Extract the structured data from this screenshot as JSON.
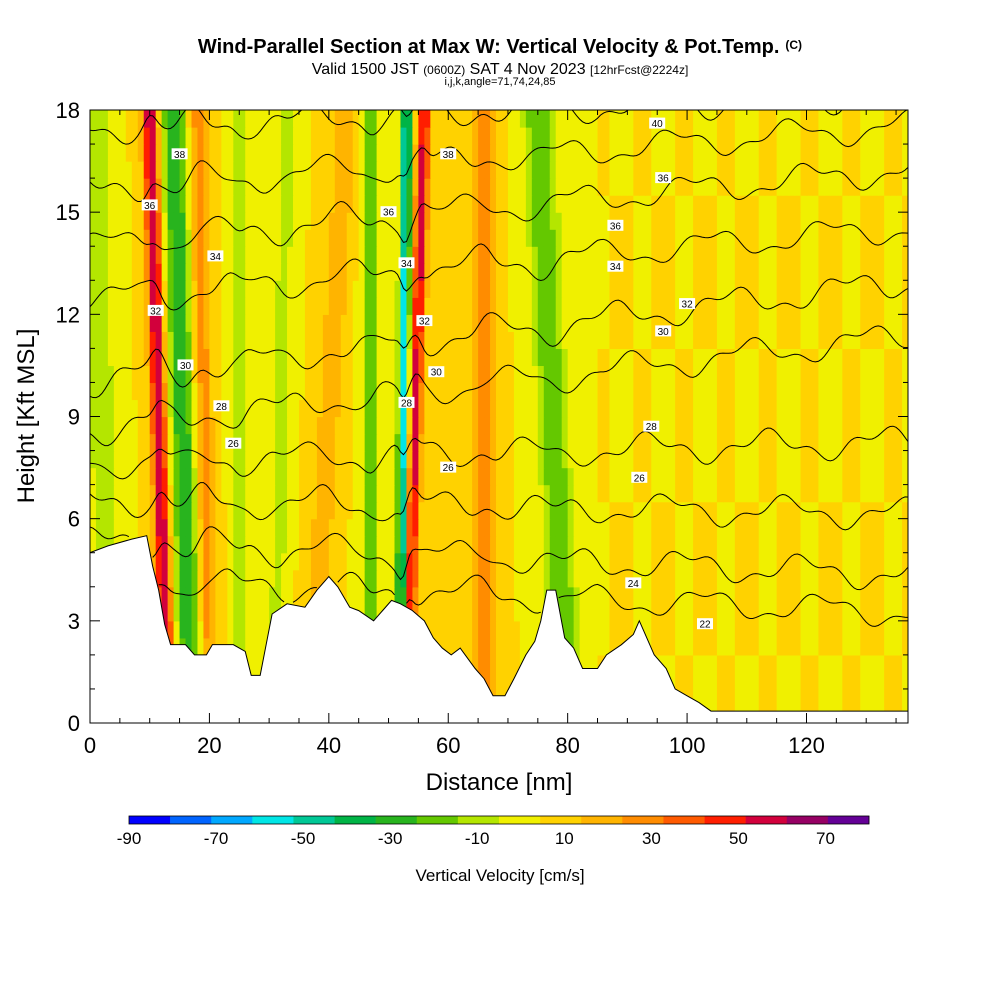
{
  "title": {
    "main": "Wind-Parallel Section at Max W: Vertical Velocity & Pot.Temp.",
    "copyright": "(C)",
    "valid_prefix": "Valid 1500 JST",
    "valid_utc": "(0600Z)",
    "valid_date": "SAT 4 Nov 2023",
    "forecast": "[12hrFcst@2224z]",
    "indices": "i,j,k,angle=71,74,24,85"
  },
  "chart_data": {
    "type": "heatmap",
    "xlabel": "Distance [nm]",
    "ylabel": "Height [Kft MSL]",
    "xlim": [
      0,
      137
    ],
    "ylim": [
      0,
      18
    ],
    "x_ticks": [
      {
        "value": 0,
        "label": "0"
      },
      {
        "value": 20,
        "label": "20"
      },
      {
        "value": 40,
        "label": "40"
      },
      {
        "value": 60,
        "label": "60"
      },
      {
        "value": 80,
        "label": "80"
      },
      {
        "value": 100,
        "label": "100"
      },
      {
        "value": 120,
        "label": "120"
      }
    ],
    "y_ticks": [
      {
        "value": 0,
        "label": "0"
      },
      {
        "value": 3,
        "label": "3"
      },
      {
        "value": 6,
        "label": "6"
      },
      {
        "value": 9,
        "label": "9"
      },
      {
        "value": 12,
        "label": "12"
      },
      {
        "value": 15,
        "label": "15"
      },
      {
        "value": 18,
        "label": "18"
      }
    ],
    "background_w": 10,
    "updrafts": [
      {
        "x_bottom": 13,
        "x_top": 10,
        "amp": 60,
        "width": 1.3
      },
      {
        "x_bottom": 20,
        "x_top": 18,
        "amp": 25,
        "width": 1.6
      },
      {
        "x_bottom": 53,
        "x_top": 56,
        "amp": 55,
        "width": 1.1
      },
      {
        "x_bottom": 66,
        "x_top": 66,
        "amp": 28,
        "width": 1.8
      },
      {
        "x_bottom": 37,
        "x_top": 43,
        "amp": 18,
        "width": 2.0
      }
    ],
    "downdrafts": [
      {
        "x_bottom": 17,
        "x_top": 14,
        "amp": -40,
        "width": 2.0
      },
      {
        "x_bottom": 52,
        "x_top": 53,
        "amp": -65,
        "width": 0.9
      },
      {
        "x_bottom": 80,
        "x_top": 75,
        "amp": -30,
        "width": 2.5
      },
      {
        "x_bottom": 47,
        "x_top": 47,
        "amp": -25,
        "width": 1.5
      },
      {
        "x_bottom": 25,
        "x_top": 25,
        "amp": -18,
        "width": 1.3
      },
      {
        "x_bottom": 31,
        "x_top": 33,
        "amp": -15,
        "width": 1.5
      },
      {
        "x_bottom": 3,
        "x_top": 1,
        "amp": -20,
        "width": 2.0
      }
    ],
    "terrain": [
      [
        0,
        5.0
      ],
      [
        3,
        5.2
      ],
      [
        7,
        5.4
      ],
      [
        9.5,
        5.5
      ],
      [
        10.5,
        4.6
      ],
      [
        11.5,
        3.9
      ],
      [
        12.5,
        2.9
      ],
      [
        13.5,
        2.3
      ],
      [
        16,
        2.3
      ],
      [
        17.5,
        2.0
      ],
      [
        19.5,
        2.0
      ],
      [
        20.5,
        2.3
      ],
      [
        24,
        2.3
      ],
      [
        26,
        2.1
      ],
      [
        27,
        1.4
      ],
      [
        28.5,
        1.4
      ],
      [
        29.5,
        2.3
      ],
      [
        30.5,
        3.2
      ],
      [
        33,
        3.5
      ],
      [
        36,
        3.4
      ],
      [
        38,
        3.9
      ],
      [
        40,
        4.3
      ],
      [
        41.5,
        4.0
      ],
      [
        43.5,
        3.4
      ],
      [
        45,
        3.3
      ],
      [
        47.5,
        3.0
      ],
      [
        49,
        3.3
      ],
      [
        50.5,
        3.6
      ],
      [
        52,
        3.5
      ],
      [
        54,
        3.3
      ],
      [
        56,
        3.0
      ],
      [
        57.5,
        2.5
      ],
      [
        59,
        2.2
      ],
      [
        60.5,
        2.0
      ],
      [
        62,
        2.2
      ],
      [
        64.5,
        1.6
      ],
      [
        66,
        1.3
      ],
      [
        67.5,
        0.8
      ],
      [
        69.5,
        0.8
      ],
      [
        71,
        1.3
      ],
      [
        73,
        2.0
      ],
      [
        74.5,
        2.4
      ],
      [
        75.5,
        3.0
      ],
      [
        76.5,
        3.9
      ],
      [
        78,
        3.9
      ],
      [
        79.5,
        2.5
      ],
      [
        81,
        2.2
      ],
      [
        82.5,
        1.6
      ],
      [
        85,
        1.6
      ],
      [
        86.5,
        2.0
      ],
      [
        89,
        2.3
      ],
      [
        91,
        2.6
      ],
      [
        92,
        3.0
      ],
      [
        93,
        2.6
      ],
      [
        94.5,
        2.0
      ],
      [
        96.5,
        1.6
      ],
      [
        98,
        1.0
      ],
      [
        100,
        0.8
      ],
      [
        102,
        0.6
      ],
      [
        104,
        0.35
      ],
      [
        137,
        0.35
      ]
    ],
    "isentropes": [
      {
        "value": 22,
        "h_left": 4.2,
        "h_right": 3.2
      },
      {
        "value": 24,
        "h_left": 5.3,
        "h_right": 4.3
      },
      {
        "value": 26,
        "h_left": 6.5,
        "h_right": 6.1
      },
      {
        "value": 28,
        "h_left": 7.6,
        "h_right": 8.2
      },
      {
        "value": 30,
        "h_left": 8.6,
        "h_right": 11.3
      },
      {
        "value": 32,
        "h_left": 10.0,
        "h_right": 12.9
      },
      {
        "value": 34,
        "h_left": 12.4,
        "h_right": 14.5
      },
      {
        "value": 36,
        "h_left": 14.0,
        "h_right": 16.2
      },
      {
        "value": 38,
        "h_left": 15.6,
        "h_right": 17.5
      },
      {
        "value": 40,
        "h_left": 17.4,
        "h_right": 18.4
      }
    ],
    "contour_labels": [
      {
        "text": "38",
        "x": 15,
        "y": 16.7
      },
      {
        "text": "38",
        "x": 60,
        "y": 16.7
      },
      {
        "text": "36",
        "x": 10,
        "y": 15.2
      },
      {
        "text": "36",
        "x": 50,
        "y": 15.0
      },
      {
        "text": "36",
        "x": 96,
        "y": 16.0
      },
      {
        "text": "36",
        "x": 88,
        "y": 14.6
      },
      {
        "text": "34",
        "x": 21,
        "y": 13.7
      },
      {
        "text": "34",
        "x": 53,
        "y": 13.5
      },
      {
        "text": "34",
        "x": 88,
        "y": 13.4
      },
      {
        "text": "32",
        "x": 11,
        "y": 12.1
      },
      {
        "text": "32",
        "x": 56,
        "y": 11.8
      },
      {
        "text": "32",
        "x": 100,
        "y": 12.3
      },
      {
        "text": "30",
        "x": 16,
        "y": 10.5
      },
      {
        "text": "30",
        "x": 58,
        "y": 10.3
      },
      {
        "text": "30",
        "x": 96,
        "y": 11.5
      },
      {
        "text": "28",
        "x": 22,
        "y": 9.3
      },
      {
        "text": "28",
        "x": 53,
        "y": 9.4
      },
      {
        "text": "28",
        "x": 94,
        "y": 8.7
      },
      {
        "text": "26",
        "x": 24,
        "y": 8.2
      },
      {
        "text": "26",
        "x": 60,
        "y": 7.5
      },
      {
        "text": "26",
        "x": 92,
        "y": 7.2
      },
      {
        "text": "24",
        "x": 91,
        "y": 4.1
      },
      {
        "text": "22",
        "x": 103,
        "y": 2.9
      },
      {
        "text": "40",
        "x": 95,
        "y": 17.6
      }
    ],
    "colorbar": {
      "label": "Vertical Velocity [cm/s]",
      "boundaries": [
        -90,
        -80,
        -70,
        -60,
        -50,
        -40,
        -30,
        -20,
        -10,
        0,
        10,
        20,
        30,
        40,
        50,
        60,
        70,
        80
      ],
      "colors": [
        "#0000ff",
        "#0064ff",
        "#00a8ff",
        "#00e6e6",
        "#00c896",
        "#00b446",
        "#28b41e",
        "#64c800",
        "#b4e600",
        "#f0f000",
        "#ffd200",
        "#ffb400",
        "#ff8c00",
        "#ff5a00",
        "#ff1e00",
        "#d2003c",
        "#960064",
        "#640096"
      ],
      "tick_labels": [
        {
          "value": -90,
          "label": "-90"
        },
        {
          "value": -70,
          "label": "-70"
        },
        {
          "value": -50,
          "label": "-50"
        },
        {
          "value": -30,
          "label": "-30"
        },
        {
          "value": -10,
          "label": "-10"
        },
        {
          "value": 10,
          "label": "10"
        },
        {
          "value": 30,
          "label": "30"
        },
        {
          "value": 50,
          "label": "50"
        },
        {
          "value": 70,
          "label": "70"
        }
      ]
    }
  }
}
